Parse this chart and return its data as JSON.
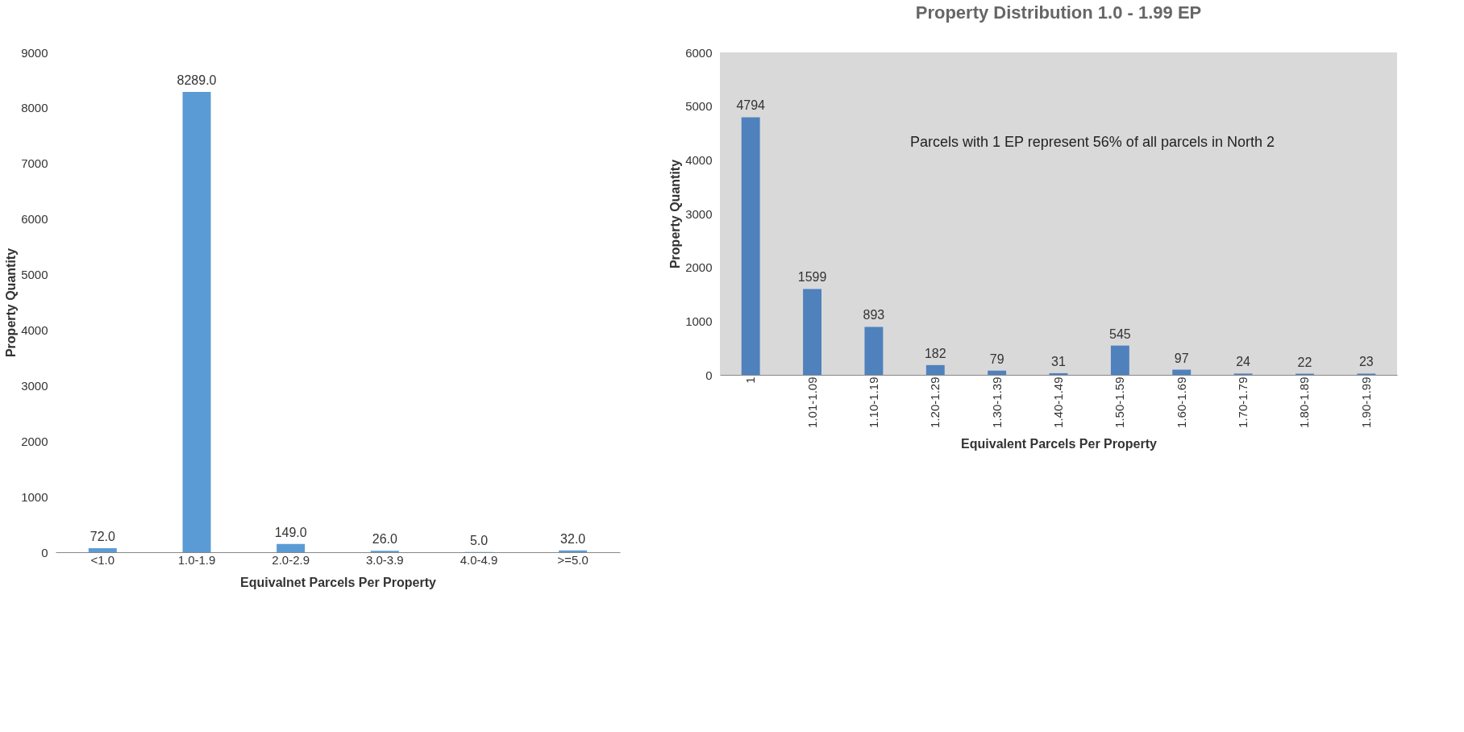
{
  "chart_data": [
    {
      "type": "bar",
      "xlabel": "Equivalnet  Parcels Per Property",
      "ylabel": "Property Quantity",
      "categories": [
        "<1.0",
        "1.0-1.9",
        "2.0-2.9",
        "3.0-3.9",
        "4.0-4.9",
        ">=5.0"
      ],
      "values": [
        72.0,
        8289.0,
        149.0,
        26.0,
        5.0,
        32.0
      ],
      "value_labels": [
        "72.0",
        "8289.0",
        "149.0",
        "26.0",
        "5.0",
        "32.0"
      ],
      "color": "#5b9bd5",
      "ylim": [
        0,
        9000
      ],
      "yticks": [
        0,
        1000,
        2000,
        3000,
        4000,
        5000,
        6000,
        7000,
        8000,
        9000
      ],
      "grid": false
    },
    {
      "type": "bar",
      "title": "Property Distribution 1.0 - 1.99 EP",
      "xlabel": "Equivalent Parcels Per Property",
      "ylabel": "Property   Quantity",
      "categories": [
        "1",
        "1.01-1.09",
        "1.10-1.19",
        "1.20-1.29",
        "1.30-1.39",
        "1.40-1.49",
        "1.50-1.59",
        "1.60-1.69",
        "1.70-1.79",
        "1.80-1.89",
        "1.90-1.99"
      ],
      "values": [
        4794,
        1599,
        893,
        182,
        79,
        31,
        545,
        97,
        24,
        22,
        23
      ],
      "data_labels": true,
      "color": "#4f81bd",
      "ylim": [
        0,
        6000
      ],
      "yticks": [
        0,
        1000,
        2000,
        3000,
        4000,
        5000,
        6000
      ],
      "grid": false,
      "annotations": [
        "Parcels with 1 EP represent 56% of all parcels in North 2"
      ]
    }
  ]
}
